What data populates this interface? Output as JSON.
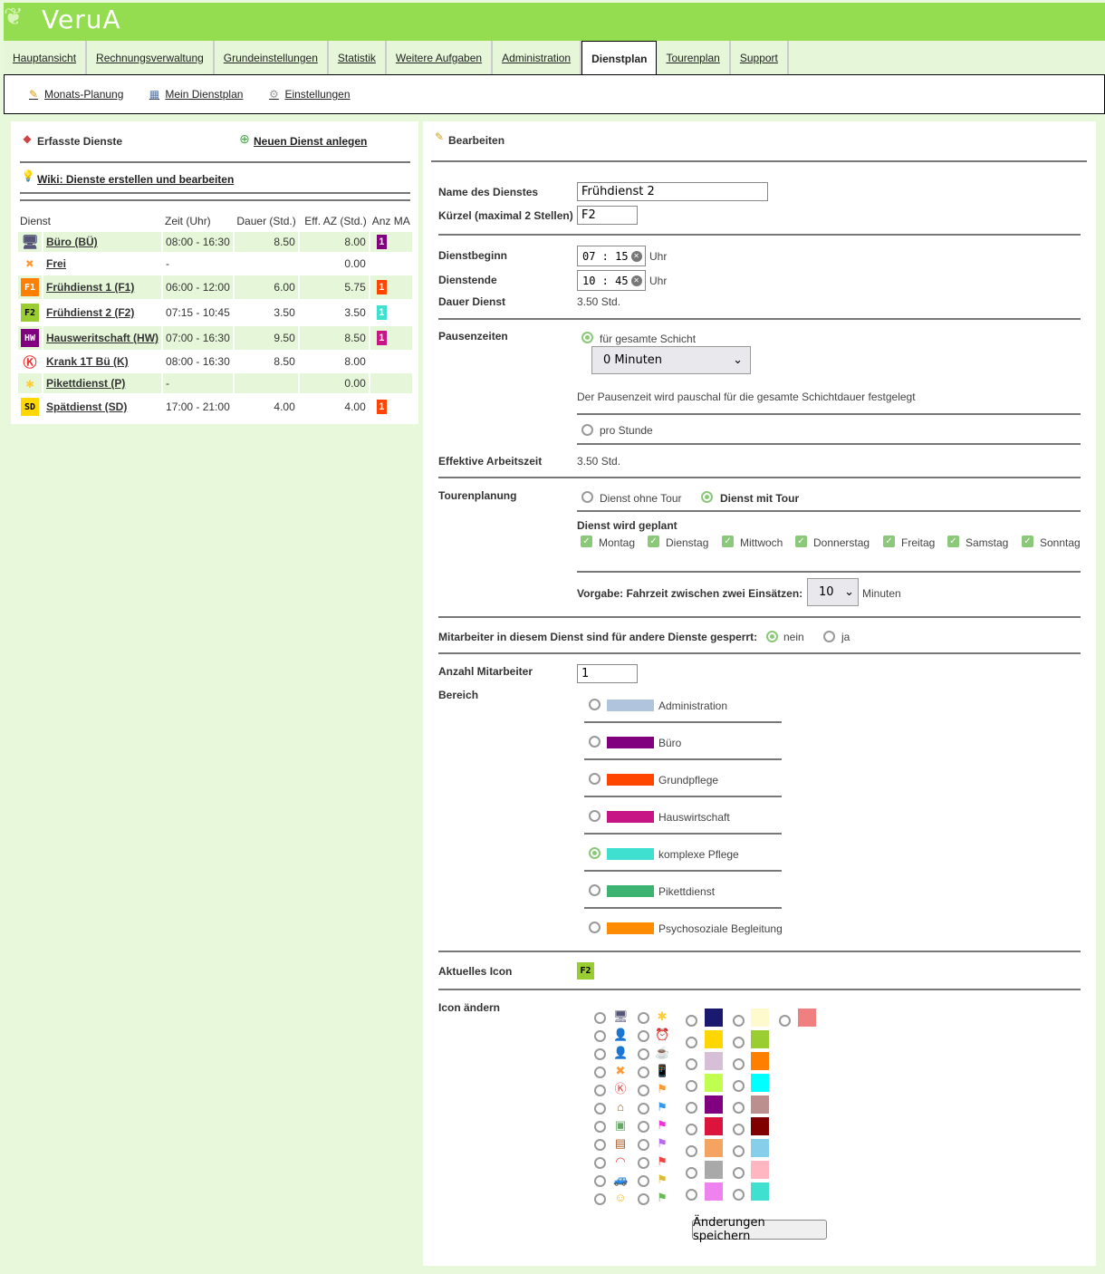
{
  "app": {
    "logo": "VeruA"
  },
  "tabs": [
    {
      "label": "Hauptansicht"
    },
    {
      "label": "Rechnungsverwaltung"
    },
    {
      "label": "Grundeinstellungen"
    },
    {
      "label": "Statistik"
    },
    {
      "label": "Weitere Aufgaben"
    },
    {
      "label": "Administration"
    },
    {
      "label": "Dienstplan",
      "active": true
    },
    {
      "label": "Tourenplan"
    },
    {
      "label": "Support"
    }
  ],
  "subnav": [
    {
      "label": "Monats-Planung",
      "icon": "calendar-edit-icon"
    },
    {
      "label": "Mein Dienstplan",
      "icon": "calendar-icon"
    },
    {
      "label": "Einstellungen",
      "icon": "gear-icon"
    }
  ],
  "left": {
    "title": "Erfasste Dienste",
    "new_link": "Neuen Dienst anlegen",
    "wiki_link": "Wiki: Dienste erstellen und bearbeiten",
    "columns": [
      "Dienst",
      "Zeit (Uhr)",
      "Dauer (Std.)",
      "Eff. AZ (Std.)",
      "Anz MA"
    ],
    "rows": [
      {
        "icon": "computer-icon",
        "icon_text": "",
        "icon_bg": "",
        "name": "Büro (BÜ)",
        "zeit": "08:00 - 16:30",
        "dauer": "8.50",
        "eff": "8.00",
        "anz": "1",
        "anz_color": "#800080"
      },
      {
        "icon": "x-icon",
        "icon_text": "",
        "icon_bg": "",
        "name": "Frei",
        "zeit": "-",
        "dauer": "",
        "eff": "0.00",
        "anz": "",
        "anz_color": ""
      },
      {
        "icon": "f1-icon",
        "icon_text": "F1",
        "icon_bg": "#ff8000",
        "name": "Frühdienst 1 (F1)",
        "zeit": "06:00 - 12:00",
        "dauer": "6.00",
        "eff": "5.75",
        "anz": "1",
        "anz_color": "#ff4500"
      },
      {
        "icon": "f2-icon",
        "icon_text": "F2",
        "icon_bg": "#9acd32",
        "name": "Frühdienst 2 (F2)",
        "zeit": "07:15 - 10:45",
        "dauer": "3.50",
        "eff": "3.50",
        "anz": "1",
        "anz_color": "#40e0d0"
      },
      {
        "icon": "hw-icon",
        "icon_text": "HW",
        "icon_bg": "#800080",
        "name": "Hausweritschaft (HW)",
        "zeit": "07:00 - 16:30",
        "dauer": "9.50",
        "eff": "8.50",
        "anz": "1",
        "anz_color": "#c71585"
      },
      {
        "icon": "k-icon",
        "icon_text": "",
        "icon_bg": "",
        "name": "Krank 1T Bü (K)",
        "zeit": "08:00 - 16:30",
        "dauer": "8.50",
        "eff": "8.00",
        "anz": "",
        "anz_color": ""
      },
      {
        "icon": "asterisk-icon",
        "icon_text": "",
        "icon_bg": "",
        "name": "Pikettdienst (P)",
        "zeit": "-",
        "dauer": "",
        "eff": "0.00",
        "anz": "",
        "anz_color": ""
      },
      {
        "icon": "sd-icon",
        "icon_text": "SD",
        "icon_bg": "#ffd700",
        "name": "Spätdienst (SD)",
        "zeit": "17:00 - 21:00",
        "dauer": "4.00",
        "eff": "4.00",
        "anz": "1",
        "anz_color": "#ff4500"
      }
    ]
  },
  "form": {
    "title": "Bearbeiten",
    "name_label": "Name des Dienstes",
    "name_value": "Frühdienst 2",
    "kuerzel_label": "Kürzel (maximal 2 Stellen)",
    "kuerzel_value": "F2",
    "beginn_label": "Dienstbeginn",
    "beginn_h": "07",
    "beginn_m": "15",
    "ende_label": "Dienstende",
    "ende_h": "10",
    "ende_m": "45",
    "uhr": "Uhr",
    "dauer_label": "Dauer Dienst",
    "dauer_value": "3.50 Std.",
    "pausen_label": "Pausenzeiten",
    "pausen_opt1": "für gesamte Schicht",
    "pausen_select": "0 Minuten",
    "pausen_note": "Der Pausenzeit wird pauschal für die gesamte Schichtdauer festgelegt",
    "pausen_opt2": "pro Stunde",
    "eff_label": "Effektive Arbeitszeit",
    "eff_value": "3.50 Std.",
    "tour_label": "Tourenplanung",
    "tour_opt1": "Dienst ohne Tour",
    "tour_opt2": "Dienst mit Tour",
    "geplant_label": "Dienst wird geplant",
    "days": [
      "Montag",
      "Dienstag",
      "Mittwoch",
      "Donnerstag",
      "Freitag",
      "Samstag",
      "Sonntag"
    ],
    "fahrzeit_label": "Vorgabe: Fahrzeit zwischen zwei Einsätzen:",
    "fahrzeit_value": "10",
    "fahrzeit_unit": "Minuten",
    "gesperrt_label": "Mitarbeiter in diesem Dienst sind für andere Dienste gesperrt:",
    "gesperrt_no": "nein",
    "gesperrt_yes": "ja",
    "anzahl_label": "Anzahl Mitarbeiter",
    "anzahl_value": "1",
    "bereich_label": "Bereich",
    "bereiche": [
      {
        "label": "Administration",
        "color": "#b0c4de",
        "selected": false
      },
      {
        "label": "Büro",
        "color": "#800080",
        "selected": false
      },
      {
        "label": "Grundpflege",
        "color": "#ff4500",
        "selected": false
      },
      {
        "label": "Hauswirtschaft",
        "color": "#c71585",
        "selected": false
      },
      {
        "label": "komplexe Pflege",
        "color": "#40e0d0",
        "selected": true
      },
      {
        "label": "Pikettdienst",
        "color": "#3cb371",
        "selected": false
      },
      {
        "label": "Psychosoziale Begleitung",
        "color": "#ff8c00",
        "selected": false
      }
    ],
    "icon_label": "Aktuelles Icon",
    "icon_current": "F2",
    "icon_current_bg": "#9acd32",
    "icon_change_label": "Icon ändern",
    "icons_col1": [
      "computer-icon",
      "user-clock-red-icon",
      "user-clock-blue-icon",
      "x-icon",
      "k-icon",
      "house-icon",
      "picture-icon",
      "suitcase-icon",
      "rainbow-icon",
      "car-icon",
      "smiley-icon"
    ],
    "icons_col2": [
      "asterisk-icon",
      "alarm-clock-icon",
      "coffee-icon",
      "phone-icon",
      "flag-orange-icon",
      "flag-blue-icon",
      "flag-pink-icon",
      "flag-purple-icon",
      "flag-red-icon",
      "flag-yellow-icon",
      "flag-green-icon"
    ],
    "colors_col1": [
      "#191970",
      "#ffd700",
      "#d8bfd8",
      "#c0ff50",
      "#800080",
      "#dc143c",
      "#f4a460",
      "#a9a9a9",
      "#ee82ee"
    ],
    "colors_col2": [
      "#fffacd",
      "#9acd32",
      "#ff8000",
      "#00ffff",
      "#bc8f8f",
      "#800000",
      "#87ceeb",
      "#ffb6c1",
      "#40e0d0"
    ],
    "colors_col3": [
      "#f08080"
    ],
    "save_label": "Änderungen speichern"
  }
}
